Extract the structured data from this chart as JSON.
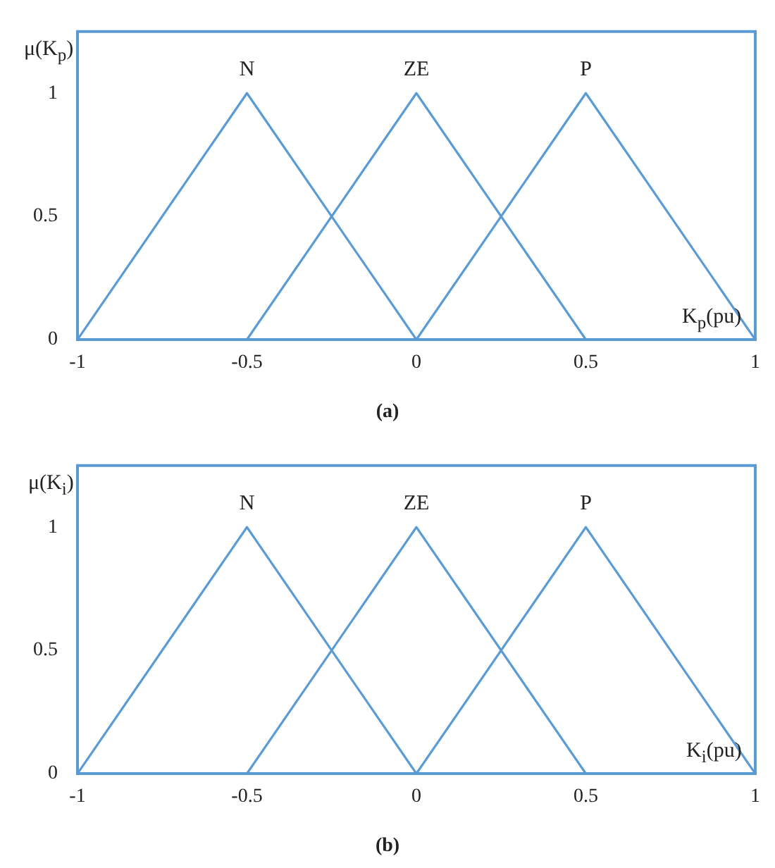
{
  "chart_data": [
    {
      "type": "line",
      "ylabel": "μ(K$_{p}$)",
      "xlabel": "K$_{p}$(pu)",
      "annotations": [
        "(a)"
      ],
      "series": [
        {
          "name": "N",
          "color": "#5b9bd5",
          "x": [
            -1,
            -0.5,
            0
          ],
          "values": [
            0,
            1,
            0
          ]
        },
        {
          "name": "ZE",
          "color": "#5b9bd5",
          "x": [
            -0.5,
            0,
            0.5
          ],
          "values": [
            0,
            1,
            0
          ]
        },
        {
          "name": "P",
          "color": "#5b9bd5",
          "x": [
            0,
            0.5,
            1
          ],
          "values": [
            0,
            1,
            0
          ]
        }
      ],
      "xlim": [
        -1,
        1
      ],
      "xticks": [
        -1,
        -0.5,
        0,
        0.5,
        1
      ],
      "ylim": [
        0,
        1.25
      ],
      "yticks": [
        0,
        0.5,
        1
      ],
      "grid": false,
      "legend": false,
      "marker": "none"
    },
    {
      "type": "line",
      "ylabel": "μ(K$_{i}$)",
      "xlabel": "K$_{i}$(pu)",
      "annotations": [
        "(b)"
      ],
      "series": [
        {
          "name": "N",
          "color": "#5b9bd5",
          "x": [
            -1,
            -0.5,
            0
          ],
          "values": [
            0,
            1,
            0
          ]
        },
        {
          "name": "ZE",
          "color": "#5b9bd5",
          "x": [
            -0.5,
            0,
            0.5
          ],
          "values": [
            0,
            1,
            0
          ]
        },
        {
          "name": "P",
          "color": "#5b9bd5",
          "x": [
            0,
            0.5,
            1
          ],
          "values": [
            0,
            1,
            0
          ]
        }
      ],
      "xlim": [
        -1,
        1
      ],
      "xticks": [
        -1,
        -0.5,
        0,
        0.5,
        1
      ],
      "ylim": [
        0,
        1.25
      ],
      "yticks": [
        0,
        0.5,
        1
      ],
      "grid": false,
      "legend": false,
      "marker": "none"
    }
  ]
}
